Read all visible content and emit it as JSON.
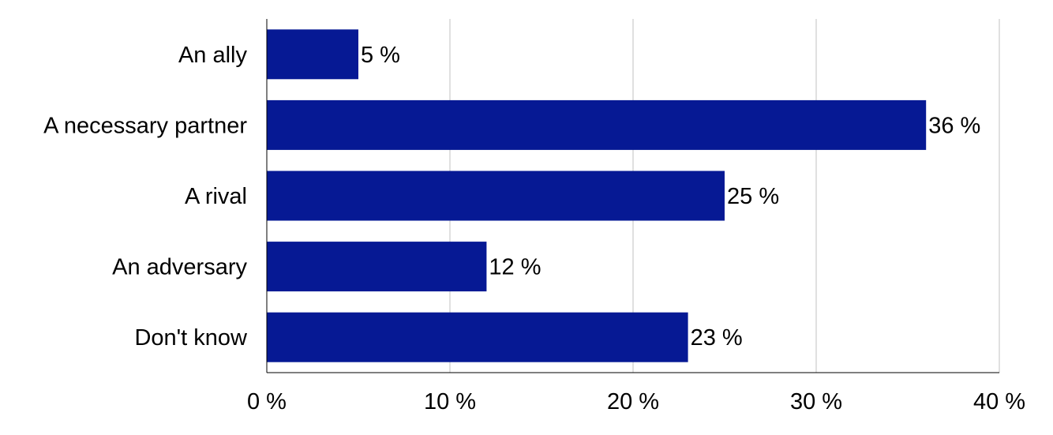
{
  "chart_data": {
    "type": "bar",
    "orientation": "horizontal",
    "categories": [
      "An ally",
      "A necessary partner",
      "A rival",
      "An adversary",
      "Don't know"
    ],
    "values": [
      5,
      36,
      25,
      12,
      23
    ],
    "data_labels": [
      "5 %",
      "36 %",
      "25 %",
      "12 %",
      "23 %"
    ],
    "x_ticks": [
      0,
      10,
      20,
      30,
      40
    ],
    "x_tick_labels": [
      "0 %",
      "10 %",
      "20 %",
      "30 %",
      "40 %"
    ],
    "xlim": [
      0,
      40
    ],
    "grid": true,
    "legend": "none",
    "title": "",
    "xlabel": "",
    "ylabel": "",
    "bar_color": "#061994"
  }
}
